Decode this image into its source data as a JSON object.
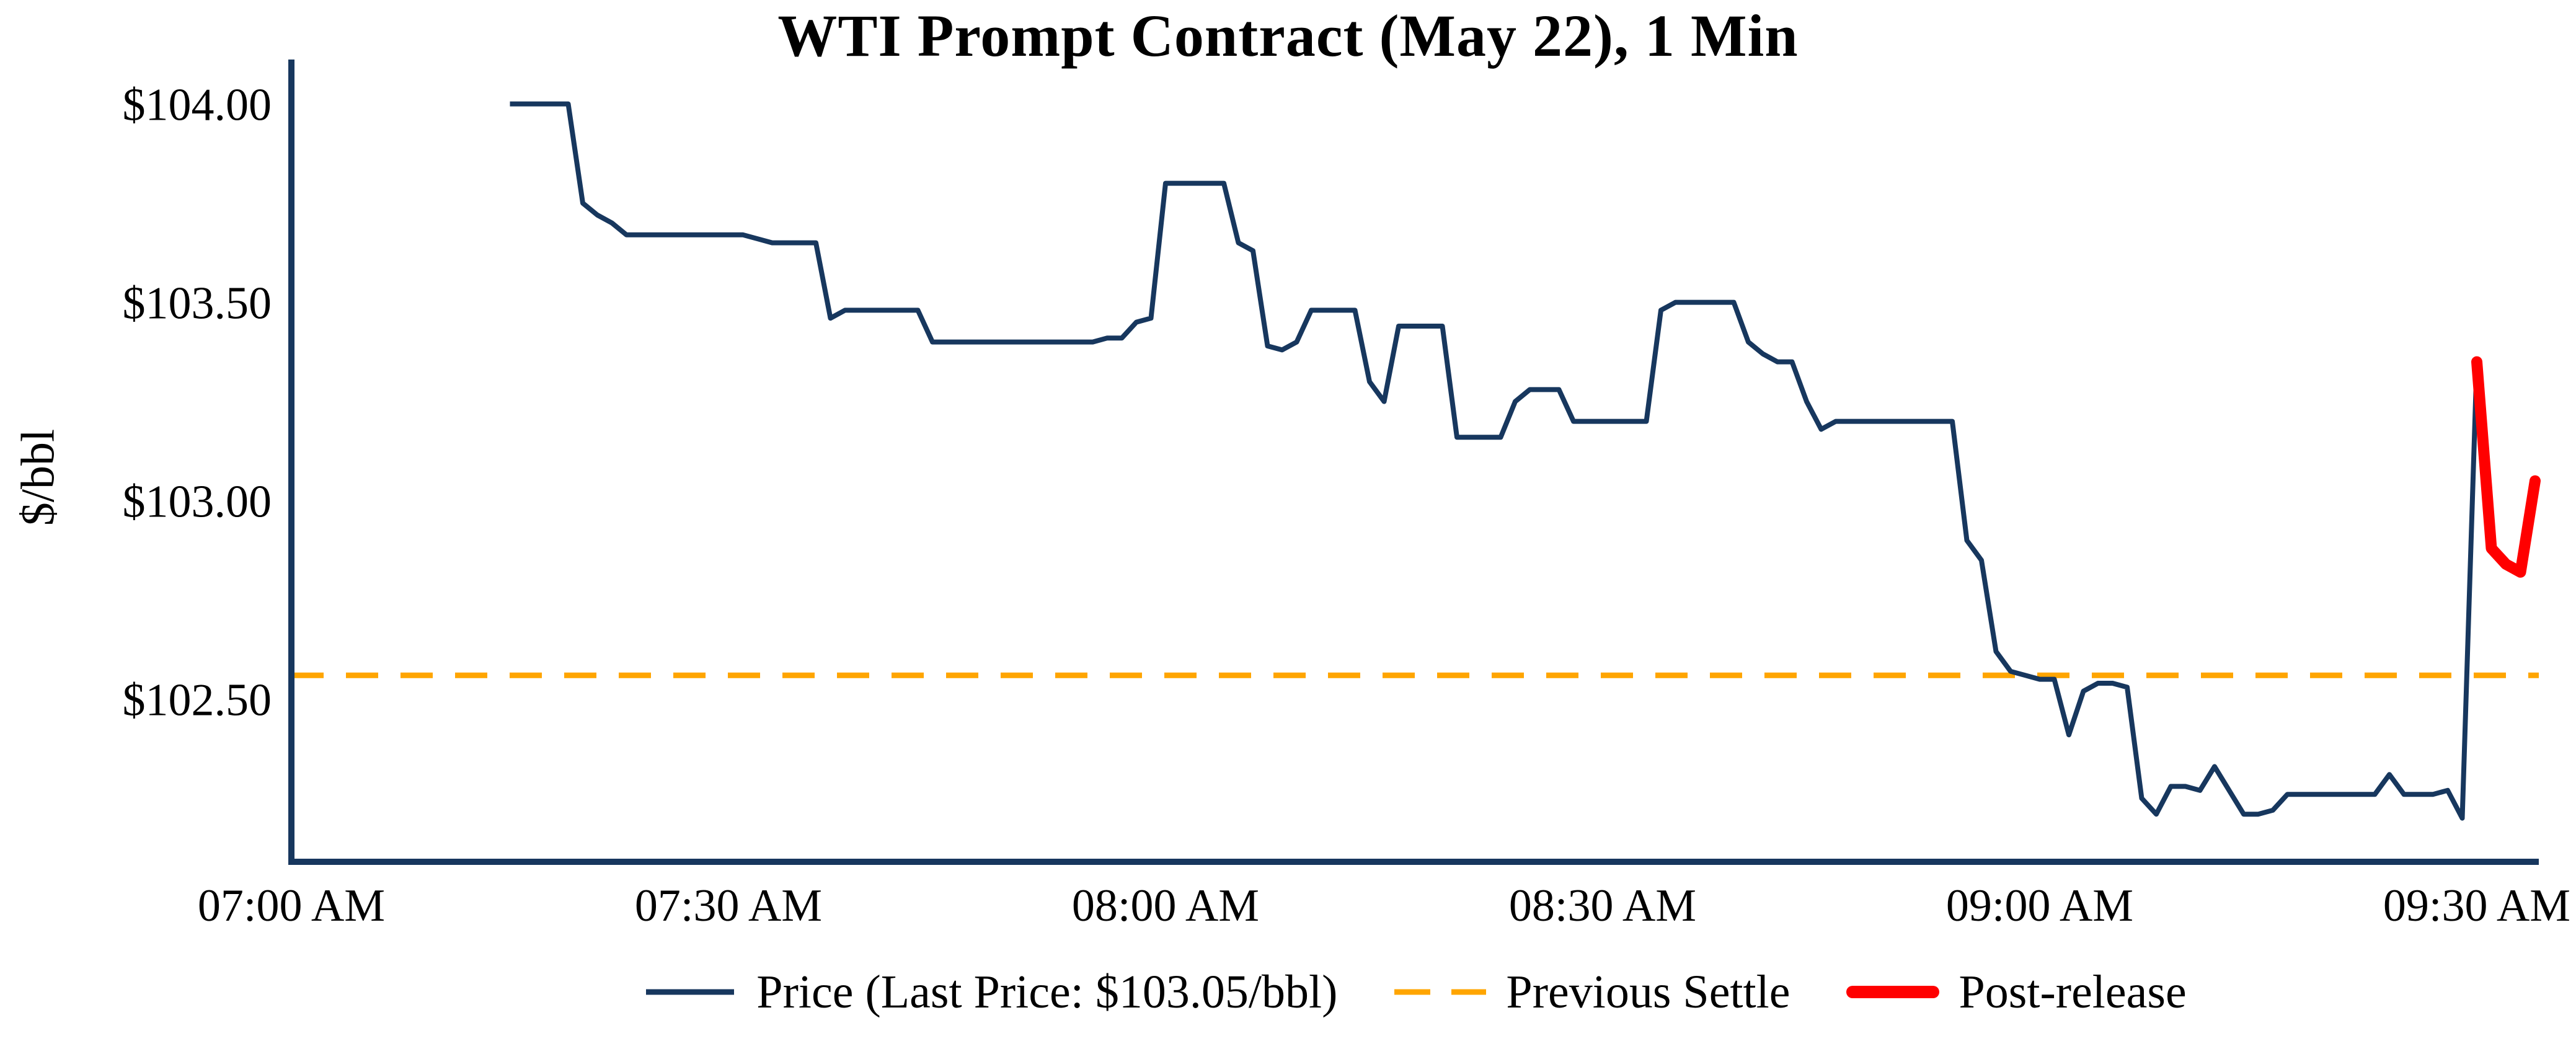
{
  "chart_data": {
    "type": "line",
    "title": "WTI Prompt Contract (May 22), 1 Min",
    "xlabel": "",
    "ylabel": "$/bbl",
    "ylim": [
      102.09,
      104.09
    ],
    "grid": false,
    "legend_position": "bottom-center",
    "last_price": "$103.05/bbl",
    "previous_settle": 102.56,
    "x_ticks": [
      "07:00 AM",
      "07:30 AM",
      "08:00 AM",
      "08:30 AM",
      "09:00 AM",
      "09:30 AM"
    ],
    "y_ticks": [
      {
        "label": "$104.00",
        "value": 104.0
      },
      {
        "label": "$103.50",
        "value": 103.5
      },
      {
        "label": "$103.00",
        "value": 103.0
      },
      {
        "label": "$102.50",
        "value": 102.5
      }
    ],
    "colors": {
      "axis": "#17375e",
      "text": "#000000"
    },
    "series": [
      {
        "name": "Price (Last Price: $103.05/bbl)",
        "color": "#17375e",
        "style": "solid",
        "points": [
          [
            "07:15",
            104.0
          ],
          [
            "07:16",
            104.0
          ],
          [
            "07:17",
            104.0
          ],
          [
            "07:18",
            104.0
          ],
          [
            "07:19",
            104.0
          ],
          [
            "07:20",
            103.75
          ],
          [
            "07:21",
            103.72
          ],
          [
            "07:22",
            103.7
          ],
          [
            "07:23",
            103.67
          ],
          [
            "07:24",
            103.67
          ],
          [
            "07:25",
            103.67
          ],
          [
            "07:26",
            103.67
          ],
          [
            "07:27",
            103.67
          ],
          [
            "07:28",
            103.67
          ],
          [
            "07:29",
            103.67
          ],
          [
            "07:30",
            103.67
          ],
          [
            "07:31",
            103.67
          ],
          [
            "07:32",
            103.66
          ],
          [
            "07:33",
            103.65
          ],
          [
            "07:34",
            103.65
          ],
          [
            "07:35",
            103.65
          ],
          [
            "07:36",
            103.65
          ],
          [
            "07:37",
            103.46
          ],
          [
            "07:38",
            103.48
          ],
          [
            "07:39",
            103.48
          ],
          [
            "07:40",
            103.48
          ],
          [
            "07:41",
            103.48
          ],
          [
            "07:42",
            103.48
          ],
          [
            "07:43",
            103.48
          ],
          [
            "07:44",
            103.4
          ],
          [
            "07:45",
            103.4
          ],
          [
            "07:46",
            103.4
          ],
          [
            "07:47",
            103.4
          ],
          [
            "07:48",
            103.4
          ],
          [
            "07:49",
            103.4
          ],
          [
            "07:50",
            103.4
          ],
          [
            "07:51",
            103.4
          ],
          [
            "07:52",
            103.4
          ],
          [
            "07:53",
            103.4
          ],
          [
            "07:54",
            103.4
          ],
          [
            "07:55",
            103.4
          ],
          [
            "07:56",
            103.41
          ],
          [
            "07:57",
            103.41
          ],
          [
            "07:58",
            103.45
          ],
          [
            "07:59",
            103.46
          ],
          [
            "08:00",
            103.8
          ],
          [
            "08:01",
            103.8
          ],
          [
            "08:02",
            103.8
          ],
          [
            "08:03",
            103.8
          ],
          [
            "08:04",
            103.8
          ],
          [
            "08:05",
            103.65
          ],
          [
            "08:06",
            103.63
          ],
          [
            "08:07",
            103.39
          ],
          [
            "08:08",
            103.38
          ],
          [
            "08:09",
            103.4
          ],
          [
            "08:10",
            103.48
          ],
          [
            "08:11",
            103.48
          ],
          [
            "08:12",
            103.48
          ],
          [
            "08:13",
            103.48
          ],
          [
            "08:14",
            103.3
          ],
          [
            "08:15",
            103.25
          ],
          [
            "08:16",
            103.44
          ],
          [
            "08:17",
            103.44
          ],
          [
            "08:18",
            103.44
          ],
          [
            "08:19",
            103.44
          ],
          [
            "08:20",
            103.16
          ],
          [
            "08:21",
            103.16
          ],
          [
            "08:22",
            103.16
          ],
          [
            "08:23",
            103.16
          ],
          [
            "08:24",
            103.25
          ],
          [
            "08:25",
            103.28
          ],
          [
            "08:26",
            103.28
          ],
          [
            "08:27",
            103.28
          ],
          [
            "08:28",
            103.2
          ],
          [
            "08:29",
            103.2
          ],
          [
            "08:30",
            103.2
          ],
          [
            "08:31",
            103.2
          ],
          [
            "08:32",
            103.2
          ],
          [
            "08:33",
            103.2
          ],
          [
            "08:34",
            103.48
          ],
          [
            "08:35",
            103.5
          ],
          [
            "08:36",
            103.5
          ],
          [
            "08:37",
            103.5
          ],
          [
            "08:38",
            103.5
          ],
          [
            "08:39",
            103.5
          ],
          [
            "08:40",
            103.4
          ],
          [
            "08:41",
            103.37
          ],
          [
            "08:42",
            103.35
          ],
          [
            "08:43",
            103.35
          ],
          [
            "08:44",
            103.25
          ],
          [
            "08:45",
            103.18
          ],
          [
            "08:46",
            103.2
          ],
          [
            "08:47",
            103.2
          ],
          [
            "08:48",
            103.2
          ],
          [
            "08:49",
            103.2
          ],
          [
            "08:50",
            103.2
          ],
          [
            "08:51",
            103.2
          ],
          [
            "08:52",
            103.2
          ],
          [
            "08:53",
            103.2
          ],
          [
            "08:54",
            103.2
          ],
          [
            "08:55",
            102.9
          ],
          [
            "08:56",
            102.85
          ],
          [
            "08:57",
            102.62
          ],
          [
            "08:58",
            102.57
          ],
          [
            "08:59",
            102.56
          ],
          [
            "09:00",
            102.55
          ],
          [
            "09:01",
            102.55
          ],
          [
            "09:02",
            102.41
          ],
          [
            "09:03",
            102.52
          ],
          [
            "09:04",
            102.54
          ],
          [
            "09:05",
            102.54
          ],
          [
            "09:06",
            102.53
          ],
          [
            "09:07",
            102.25
          ],
          [
            "09:08",
            102.21
          ],
          [
            "09:09",
            102.28
          ],
          [
            "09:10",
            102.28
          ],
          [
            "09:11",
            102.27
          ],
          [
            "09:12",
            102.33
          ],
          [
            "09:13",
            102.27
          ],
          [
            "09:14",
            102.21
          ],
          [
            "09:15",
            102.21
          ],
          [
            "09:16",
            102.22
          ],
          [
            "09:17",
            102.26
          ],
          [
            "09:18",
            102.26
          ],
          [
            "09:19",
            102.26
          ],
          [
            "09:20",
            102.26
          ],
          [
            "09:21",
            102.26
          ],
          [
            "09:22",
            102.26
          ],
          [
            "09:23",
            102.26
          ],
          [
            "09:24",
            102.31
          ],
          [
            "09:25",
            102.26
          ],
          [
            "09:26",
            102.26
          ],
          [
            "09:27",
            102.26
          ],
          [
            "09:28",
            102.27
          ],
          [
            "09:29",
            102.2
          ],
          [
            "09:30",
            103.35
          ]
        ]
      },
      {
        "name": "Previous Settle",
        "color": "#FFA500",
        "style": "dashed",
        "points": [
          [
            "07:00",
            102.56
          ],
          [
            "09:34",
            102.56
          ]
        ]
      },
      {
        "name": "Post-release",
        "color": "#FF0000",
        "style": "solid-thick",
        "points": [
          [
            "09:30",
            103.35
          ],
          [
            "09:31",
            102.88
          ],
          [
            "09:32",
            102.84
          ],
          [
            "09:33",
            102.82
          ],
          [
            "09:34",
            103.05
          ]
        ]
      }
    ]
  }
}
